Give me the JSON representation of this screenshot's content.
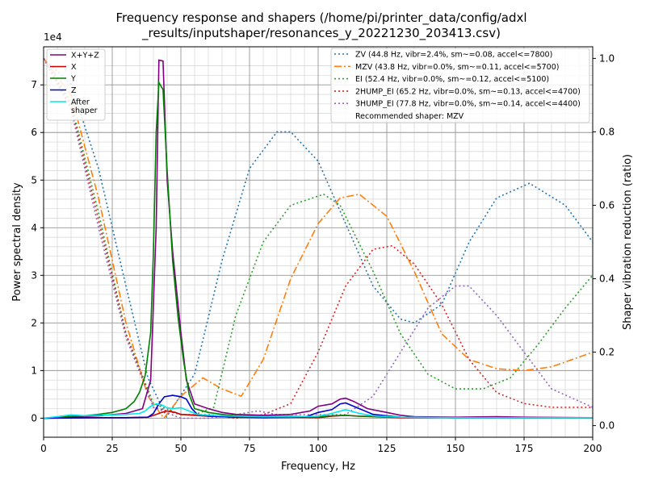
{
  "chart_data": {
    "type": "line",
    "title": "Frequency response and shapers (/home/pi/printer_data/config/adxl",
    "title_line2": "_results/inputshaper/resonances_y_20221230_203413.csv)",
    "xlabel": "Frequency, Hz",
    "ylabel": "Power spectral density",
    "y2label": "Shaper vibration reduction (ratio)",
    "y_multiplier": "1e4",
    "xlim": [
      0,
      200
    ],
    "ylim": [
      -0.4,
      7.8
    ],
    "y2lim": [
      -0.0316,
      1.0316
    ],
    "grid": true,
    "x_ticks": [
      0,
      25,
      50,
      75,
      100,
      125,
      150,
      175,
      200
    ],
    "x_tick_labels": [
      "0",
      "25",
      "50",
      "75",
      "100",
      "125",
      "150",
      "175",
      "200"
    ],
    "y_ticks": [
      0,
      1,
      2,
      3,
      4,
      5,
      6,
      7
    ],
    "y_tick_labels": [
      "0",
      "1",
      "2",
      "3",
      "4",
      "5",
      "6",
      "7"
    ],
    "y2_ticks": [
      0,
      0.2,
      0.4,
      0.6,
      0.8,
      1.0
    ],
    "y2_tick_labels": [
      "0.0",
      "0.2",
      "0.4",
      "0.6",
      "0.8",
      "1.0"
    ],
    "legend_left_placement": "top-left",
    "legend_right_placement": "top-right",
    "recommended_text": "Recommended shaper: MZV",
    "psd_series": [
      {
        "name": "X+Y+Z",
        "color": "#800080",
        "points": [
          [
            0,
            0
          ],
          [
            10,
            0.02
          ],
          [
            20,
            0.05
          ],
          [
            30,
            0.1
          ],
          [
            36,
            0.2
          ],
          [
            39,
            0.8
          ],
          [
            41,
            4
          ],
          [
            42,
            7.52
          ],
          [
            43.5,
            7.5
          ],
          [
            45,
            5
          ],
          [
            47,
            3.5
          ],
          [
            50,
            1.8
          ],
          [
            52,
            0.8
          ],
          [
            55,
            0.3
          ],
          [
            60,
            0.2
          ],
          [
            65,
            0.12
          ],
          [
            70,
            0.08
          ],
          [
            80,
            0.06
          ],
          [
            90,
            0.08
          ],
          [
            97,
            0.15
          ],
          [
            100,
            0.25
          ],
          [
            105,
            0.3
          ],
          [
            108,
            0.4
          ],
          [
            110,
            0.42
          ],
          [
            113,
            0.35
          ],
          [
            118,
            0.2
          ],
          [
            125,
            0.12
          ],
          [
            130,
            0.06
          ],
          [
            135,
            0.03
          ],
          [
            150,
            0.02
          ],
          [
            165,
            0.03
          ],
          [
            175,
            0.02
          ],
          [
            200,
            0.01
          ]
        ]
      },
      {
        "name": "X",
        "color": "#cc0000",
        "points": [
          [
            0,
            0
          ],
          [
            10,
            0.01
          ],
          [
            20,
            0.01
          ],
          [
            30,
            0.01
          ],
          [
            38,
            0.02
          ],
          [
            41,
            0.08
          ],
          [
            43,
            0.12
          ],
          [
            45,
            0.15
          ],
          [
            48,
            0.12
          ],
          [
            50,
            0.08
          ],
          [
            55,
            0.06
          ],
          [
            60,
            0.04
          ],
          [
            70,
            0.02
          ],
          [
            80,
            0.02
          ],
          [
            90,
            0.02
          ],
          [
            100,
            0.01
          ],
          [
            105,
            0.04
          ],
          [
            110,
            0.06
          ],
          [
            115,
            0.04
          ],
          [
            120,
            0.03
          ],
          [
            130,
            0.01
          ],
          [
            160,
            0.01
          ],
          [
            200,
            0.01
          ]
        ]
      },
      {
        "name": "Y",
        "color": "#008000",
        "points": [
          [
            0,
            0
          ],
          [
            5,
            0.02
          ],
          [
            10,
            0.04
          ],
          [
            15,
            0.05
          ],
          [
            20,
            0.08
          ],
          [
            25,
            0.12
          ],
          [
            30,
            0.2
          ],
          [
            33,
            0.35
          ],
          [
            35,
            0.55
          ],
          [
            37,
            0.9
          ],
          [
            39,
            1.8
          ],
          [
            40,
            3.5
          ],
          [
            41,
            6
          ],
          [
            42,
            7.05
          ],
          [
            43.5,
            6.9
          ],
          [
            45,
            5.2
          ],
          [
            47,
            3.3
          ],
          [
            49,
            2.1
          ],
          [
            51,
            1.2
          ],
          [
            53,
            0.5
          ],
          [
            55,
            0.2
          ],
          [
            60,
            0.12
          ],
          [
            65,
            0.08
          ],
          [
            70,
            0.05
          ],
          [
            80,
            0.04
          ],
          [
            90,
            0.04
          ],
          [
            100,
            0.03
          ],
          [
            105,
            0.05
          ],
          [
            110,
            0.06
          ],
          [
            115,
            0.04
          ],
          [
            120,
            0.04
          ],
          [
            130,
            0.02
          ],
          [
            150,
            0.01
          ],
          [
            200,
            0.01
          ]
        ]
      },
      {
        "name": "Z",
        "color": "#0000cc",
        "points": [
          [
            0,
            0
          ],
          [
            20,
            0.01
          ],
          [
            30,
            0.01
          ],
          [
            38,
            0.02
          ],
          [
            40,
            0.1
          ],
          [
            42,
            0.3
          ],
          [
            44,
            0.45
          ],
          [
            47,
            0.48
          ],
          [
            50,
            0.45
          ],
          [
            52,
            0.4
          ],
          [
            54,
            0.2
          ],
          [
            56,
            0.08
          ],
          [
            60,
            0.04
          ],
          [
            70,
            0.02
          ],
          [
            80,
            0.01
          ],
          [
            95,
            0.02
          ],
          [
            100,
            0.12
          ],
          [
            105,
            0.18
          ],
          [
            108,
            0.3
          ],
          [
            110,
            0.32
          ],
          [
            115,
            0.2
          ],
          [
            120,
            0.08
          ],
          [
            130,
            0.02
          ],
          [
            150,
            0.01
          ],
          [
            200,
            0.01
          ]
        ]
      },
      {
        "name": "After\nshaper",
        "color": "#00e5ee",
        "points": [
          [
            0,
            0
          ],
          [
            5,
            0.03
          ],
          [
            10,
            0.07
          ],
          [
            15,
            0.05
          ],
          [
            20,
            0.06
          ],
          [
            25,
            0.07
          ],
          [
            30,
            0.08
          ],
          [
            35,
            0.1
          ],
          [
            37,
            0.15
          ],
          [
            39,
            0.25
          ],
          [
            41,
            0.3
          ],
          [
            43,
            0.28
          ],
          [
            45,
            0.22
          ],
          [
            47,
            0.2
          ],
          [
            50,
            0.22
          ],
          [
            53,
            0.15
          ],
          [
            56,
            0.08
          ],
          [
            60,
            0.06
          ],
          [
            65,
            0.05
          ],
          [
            70,
            0.04
          ],
          [
            80,
            0.03
          ],
          [
            90,
            0.03
          ],
          [
            100,
            0.04
          ],
          [
            105,
            0.1
          ],
          [
            110,
            0.18
          ],
          [
            115,
            0.1
          ],
          [
            120,
            0.05
          ],
          [
            130,
            0.02
          ],
          [
            150,
            0.01
          ],
          [
            200,
            0.01
          ]
        ]
      }
    ],
    "shaper_series": [
      {
        "name": "ZV (44.8 Hz, vibr=2.4%, sm~=0.08, accel<=7800)",
        "color": "#1f77b4",
        "dash": "2,3",
        "points": [
          [
            0,
            1
          ],
          [
            10,
            0.93
          ],
          [
            20,
            0.7
          ],
          [
            30,
            0.38
          ],
          [
            38,
            0.13
          ],
          [
            44.8,
            0.024
          ],
          [
            55,
            0.14
          ],
          [
            65,
            0.45
          ],
          [
            75,
            0.7
          ],
          [
            85,
            0.8
          ],
          [
            90,
            0.8
          ],
          [
            100,
            0.72
          ],
          [
            110,
            0.55
          ],
          [
            120,
            0.38
          ],
          [
            130,
            0.29
          ],
          [
            135,
            0.28
          ],
          [
            145,
            0.33
          ],
          [
            155,
            0.5
          ],
          [
            165,
            0.62
          ],
          [
            177,
            0.66
          ],
          [
            190,
            0.6
          ],
          [
            200,
            0.5
          ]
        ]
      },
      {
        "name": "MZV (43.8 Hz, vibr=0.0%, sm~=0.11, accel<=5700)",
        "color": "#ff7f0e",
        "dash": "9,3,2,3",
        "points": [
          [
            0,
            1
          ],
          [
            10,
            0.9
          ],
          [
            20,
            0.62
          ],
          [
            30,
            0.28
          ],
          [
            38,
            0.08
          ],
          [
            43.8,
            0.02
          ],
          [
            50,
            0.08
          ],
          [
            58,
            0.13
          ],
          [
            65,
            0.1
          ],
          [
            72,
            0.08
          ],
          [
            80,
            0.18
          ],
          [
            90,
            0.4
          ],
          [
            100,
            0.55
          ],
          [
            108,
            0.62
          ],
          [
            115,
            0.63
          ],
          [
            125,
            0.57
          ],
          [
            135,
            0.42
          ],
          [
            145,
            0.25
          ],
          [
            155,
            0.18
          ],
          [
            165,
            0.155
          ],
          [
            175,
            0.15
          ],
          [
            185,
            0.16
          ],
          [
            200,
            0.2
          ]
        ]
      },
      {
        "name": "EI (52.4 Hz, vibr=0.0%, sm~=0.12, accel<=5100)",
        "color": "#2ca02c",
        "dash": "2,3",
        "points": [
          [
            0,
            1
          ],
          [
            10,
            0.88
          ],
          [
            20,
            0.58
          ],
          [
            30,
            0.25
          ],
          [
            40,
            0.06
          ],
          [
            50,
            0.03
          ],
          [
            55,
            0.03
          ],
          [
            62,
            0.05
          ],
          [
            70,
            0.3
          ],
          [
            80,
            0.5
          ],
          [
            90,
            0.6
          ],
          [
            102,
            0.63
          ],
          [
            108,
            0.6
          ],
          [
            120,
            0.42
          ],
          [
            130,
            0.25
          ],
          [
            140,
            0.14
          ],
          [
            150,
            0.1
          ],
          [
            160,
            0.1
          ],
          [
            170,
            0.13
          ],
          [
            180,
            0.22
          ],
          [
            190,
            0.32
          ],
          [
            200,
            0.41
          ]
        ]
      },
      {
        "name": "2HUMP_EI (65.2 Hz, vibr=0.0%, sm~=0.13, accel<=4700)",
        "color": "#d62728",
        "dash": "2,3",
        "points": [
          [
            0,
            1
          ],
          [
            10,
            0.87
          ],
          [
            20,
            0.56
          ],
          [
            30,
            0.25
          ],
          [
            40,
            0.05
          ],
          [
            50,
            0.03
          ],
          [
            60,
            0.03
          ],
          [
            70,
            0.02
          ],
          [
            80,
            0.03
          ],
          [
            90,
            0.06
          ],
          [
            100,
            0.2
          ],
          [
            110,
            0.38
          ],
          [
            120,
            0.48
          ],
          [
            127,
            0.49
          ],
          [
            135,
            0.44
          ],
          [
            145,
            0.33
          ],
          [
            155,
            0.18
          ],
          [
            165,
            0.09
          ],
          [
            175,
            0.06
          ],
          [
            185,
            0.05
          ],
          [
            200,
            0.05
          ]
        ]
      },
      {
        "name": "3HUMP_EI (77.8 Hz, vibr=0.0%, sm~=0.14, accel<=4400)",
        "color": "#9467bd",
        "dash": "2,3",
        "points": [
          [
            0,
            1
          ],
          [
            10,
            0.86
          ],
          [
            20,
            0.54
          ],
          [
            30,
            0.24
          ],
          [
            40,
            0.05
          ],
          [
            50,
            0.02
          ],
          [
            60,
            0.02
          ],
          [
            70,
            0.03
          ],
          [
            78,
            0.04
          ],
          [
            85,
            0.03
          ],
          [
            100,
            0.03
          ],
          [
            110,
            0.03
          ],
          [
            120,
            0.08
          ],
          [
            130,
            0.2
          ],
          [
            140,
            0.32
          ],
          [
            150,
            0.38
          ],
          [
            155,
            0.38
          ],
          [
            165,
            0.3
          ],
          [
            175,
            0.2
          ],
          [
            185,
            0.1
          ],
          [
            200,
            0.05
          ]
        ]
      }
    ]
  }
}
